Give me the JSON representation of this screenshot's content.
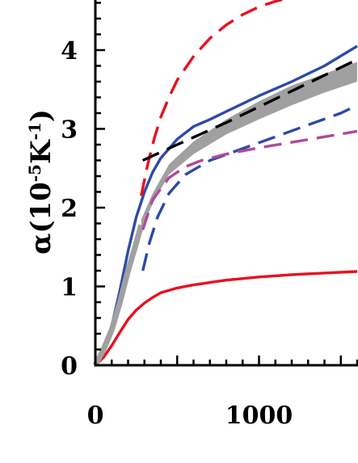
{
  "chart_data": {
    "type": "line",
    "title": "",
    "xlabel": "",
    "ylabel": {
      "prefix": "α(10",
      "exp1": "-5",
      "middle": "K",
      "exp2": "-1",
      "suffix": ")"
    },
    "xlim": [
      0,
      1600
    ],
    "ylim": [
      0,
      4.6
    ],
    "x_ticks": [
      0,
      1000
    ],
    "x_tick_labels": [
      "0",
      "1000"
    ],
    "x_minor_step": 100,
    "y_ticks": [
      0,
      1,
      2,
      3,
      4
    ],
    "y_tick_labels": [
      "0",
      "1",
      "2",
      "3",
      "4"
    ],
    "y_minor_step": 0.2,
    "grid": false,
    "band": {
      "color": "#a0a0a0",
      "x": [
        280,
        350,
        450,
        600,
        800,
        1000,
        1200,
        1400,
        1600
      ],
      "lower": [
        1.72,
        2.05,
        2.42,
        2.68,
        2.93,
        3.12,
        3.3,
        3.46,
        3.6
      ],
      "upper": [
        1.85,
        2.18,
        2.55,
        2.84,
        3.12,
        3.35,
        3.55,
        3.7,
        3.85
      ]
    },
    "series": [
      {
        "color": "#e8101e",
        "dash": "solid",
        "x": [
          0,
          50,
          100,
          150,
          200,
          250,
          300,
          350,
          400,
          500,
          600,
          700,
          800,
          1000,
          1200,
          1400,
          1600
        ],
        "y": [
          0,
          0.1,
          0.25,
          0.42,
          0.58,
          0.7,
          0.79,
          0.86,
          0.92,
          0.98,
          1.02,
          1.05,
          1.08,
          1.12,
          1.15,
          1.17,
          1.19
        ]
      },
      {
        "color": "#2d4aa8",
        "dash": "solid",
        "x": [
          0,
          50,
          100,
          150,
          200,
          250,
          300,
          350,
          400,
          500,
          600,
          700,
          800,
          1000,
          1200,
          1400,
          1600
        ],
        "y": [
          0,
          0.2,
          0.5,
          0.95,
          1.45,
          1.88,
          2.2,
          2.45,
          2.63,
          2.87,
          3.03,
          3.12,
          3.22,
          3.42,
          3.6,
          3.8,
          4.05
        ]
      },
      {
        "color": "#a0a0a0",
        "dash": "solid",
        "x": [
          0,
          50,
          100,
          150,
          200,
          250,
          280
        ],
        "y": [
          0,
          0.2,
          0.45,
          0.8,
          1.2,
          1.55,
          1.78
        ]
      },
      {
        "color": "#e8101e",
        "dash": "dashed",
        "x": [
          280,
          320,
          360,
          400,
          450,
          500,
          600,
          700,
          800,
          900,
          1000,
          1100,
          1200,
          1300
        ],
        "y": [
          2.15,
          2.55,
          2.88,
          3.15,
          3.4,
          3.62,
          3.92,
          4.15,
          4.32,
          4.45,
          4.55,
          4.62,
          4.67,
          4.7
        ]
      },
      {
        "color": "#000000",
        "dash": "dashed",
        "x": [
          290,
          500,
          800,
          1000,
          1200,
          1400,
          1600
        ],
        "y": [
          2.6,
          2.8,
          3.08,
          3.28,
          3.48,
          3.68,
          3.88
        ]
      },
      {
        "color": "#2d4aa8",
        "dash": "dashed",
        "x": [
          290,
          330,
          380,
          450,
          550,
          700,
          900,
          1100,
          1300,
          1500,
          1600
        ],
        "y": [
          1.2,
          1.55,
          1.88,
          2.18,
          2.42,
          2.6,
          2.75,
          2.9,
          3.05,
          3.2,
          3.3
        ]
      },
      {
        "color": "#b1499a",
        "dash": "dashed",
        "x": [
          290,
          350,
          450,
          550,
          650,
          800,
          1000,
          1200,
          1400,
          1600
        ],
        "y": [
          1.72,
          2.1,
          2.38,
          2.52,
          2.6,
          2.68,
          2.76,
          2.83,
          2.9,
          2.97
        ]
      }
    ]
  }
}
